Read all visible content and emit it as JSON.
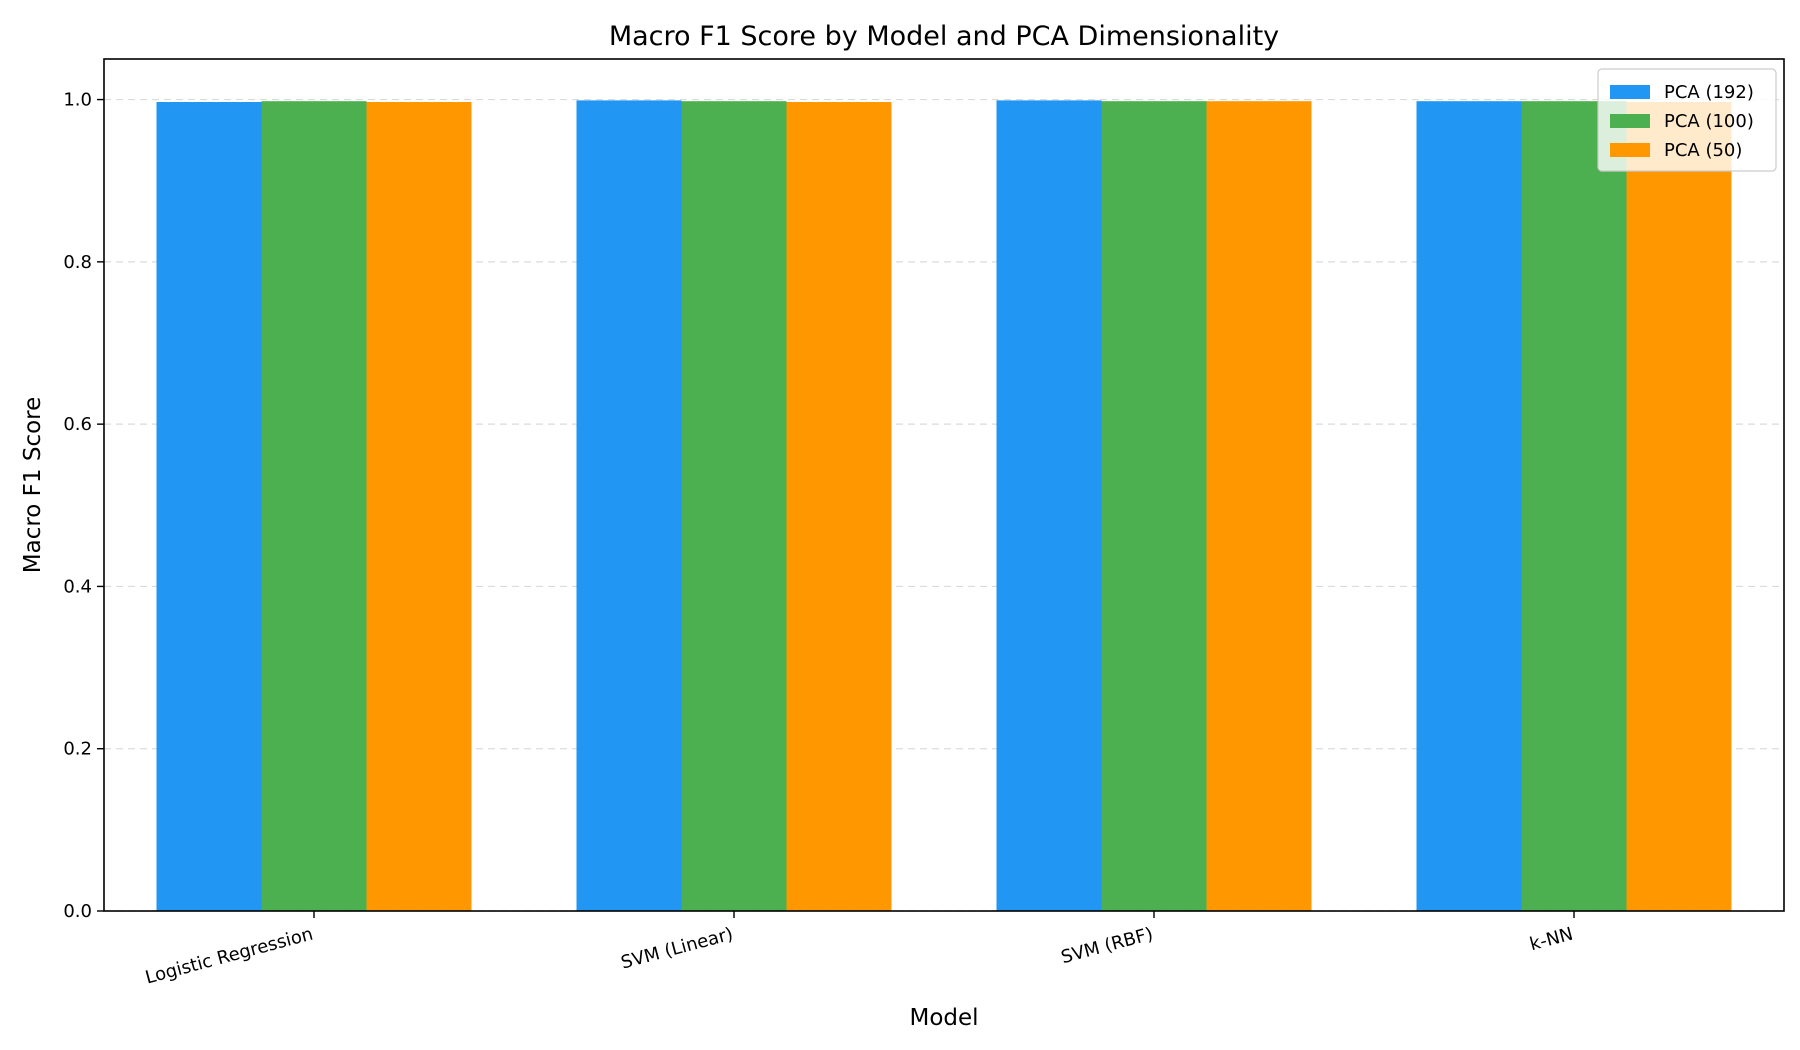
{
  "chart_data": {
    "type": "bar",
    "title": "Macro F1 Score by Model and PCA Dimensionality",
    "xlabel": "Model",
    "ylabel": "Macro F1 Score",
    "ylim": [
      0,
      1.05
    ],
    "yticks": [
      0.0,
      0.2,
      0.4,
      0.6,
      0.8,
      1.0
    ],
    "ytick_labels": [
      "0.0",
      "0.2",
      "0.4",
      "0.6",
      "0.8",
      "1.0"
    ],
    "categories": [
      "Logistic Regression",
      "SVM (Linear)",
      "SVM (RBF)",
      "k-NN"
    ],
    "series": [
      {
        "name": "PCA (192)",
        "color": "#2196F3",
        "values": [
          0.997,
          0.999,
          0.999,
          0.998
        ]
      },
      {
        "name": "PCA (100)",
        "color": "#4CAF50",
        "values": [
          0.998,
          0.998,
          0.998,
          0.998
        ]
      },
      {
        "name": "PCA (50)",
        "color": "#FF9800",
        "values": [
          0.997,
          0.997,
          0.998,
          0.997
        ]
      }
    ],
    "grid": "y-dashed",
    "legend_position": "top-right"
  }
}
